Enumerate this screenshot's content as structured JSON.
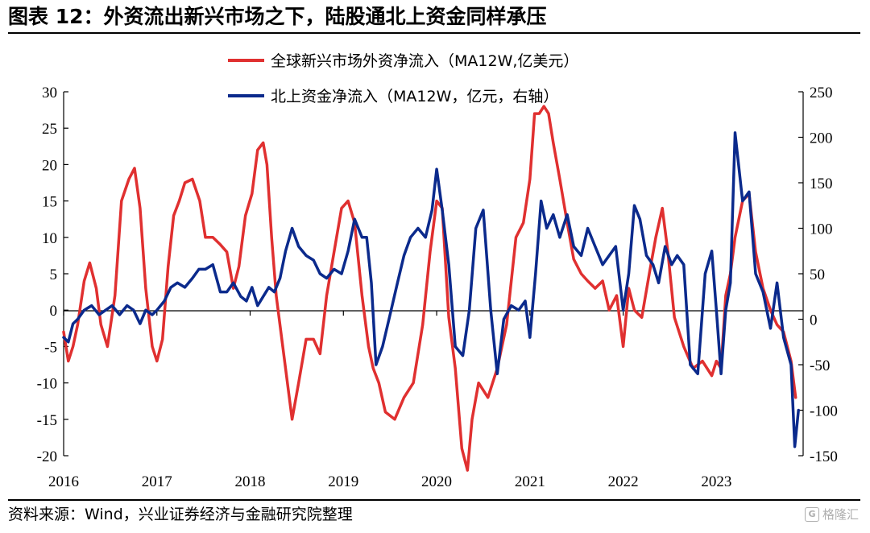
{
  "title": "图表 12：外资流出新兴市场之下，陆股通北上资金同样承压",
  "source": "资料来源：Wind，兴业证券经济与金融研究院整理",
  "watermark": "格隆汇",
  "watermark_icon": "g-logo-icon",
  "colors": {
    "series_red": "#e03030",
    "series_blue": "#0b2a8c",
    "axis": "#000000"
  },
  "chart_data": {
    "type": "line",
    "x_ticks": [
      "2016",
      "2017",
      "2018",
      "2019",
      "2020",
      "2021",
      "2022",
      "2023"
    ],
    "left_axis": {
      "range": [
        -20,
        30
      ],
      "ticks": [
        30,
        25,
        20,
        15,
        10,
        5,
        0,
        -5,
        -10,
        -15,
        -20
      ]
    },
    "right_axis": {
      "range": [
        -150,
        250
      ],
      "ticks": [
        250,
        200,
        150,
        100,
        50,
        0,
        -50,
        -100,
        -150
      ]
    },
    "legend_placement": "top-center",
    "grid": false,
    "zero_line": true,
    "series": [
      {
        "name": "全球新兴市场外资净流入（MA12W,亿美元）",
        "axis": "left",
        "x": [
          2016.0,
          2016.05,
          2016.1,
          2016.15,
          2016.22,
          2016.28,
          2016.35,
          2016.4,
          2016.47,
          2016.55,
          2016.62,
          2016.7,
          2016.76,
          2016.82,
          2016.88,
          2016.95,
          2017.0,
          2017.06,
          2017.12,
          2017.18,
          2017.24,
          2017.3,
          2017.38,
          2017.46,
          2017.52,
          2017.6,
          2017.68,
          2017.75,
          2017.82,
          2017.88,
          2017.95,
          2018.02,
          2018.08,
          2018.14,
          2018.18,
          2018.23,
          2018.28,
          2018.35,
          2018.45,
          2018.52,
          2018.6,
          2018.68,
          2018.75,
          2018.82,
          2018.9,
          2018.98,
          2019.05,
          2019.12,
          2019.2,
          2019.27,
          2019.32,
          2019.38,
          2019.45,
          2019.55,
          2019.65,
          2019.75,
          2019.85,
          2019.93,
          2020.0,
          2020.06,
          2020.13,
          2020.2,
          2020.27,
          2020.33,
          2020.38,
          2020.45,
          2020.55,
          2020.65,
          2020.75,
          2020.85,
          2020.93,
          2021.0,
          2021.05,
          2021.1,
          2021.15,
          2021.2,
          2021.25,
          2021.32,
          2021.4,
          2021.47,
          2021.55,
          2021.62,
          2021.7,
          2021.78,
          2021.85,
          2021.93,
          2022.0,
          2022.06,
          2022.12,
          2022.2,
          2022.28,
          2022.35,
          2022.42,
          2022.48,
          2022.55,
          2022.65,
          2022.75,
          2022.85,
          2022.95,
          2023.0,
          2023.05,
          2023.1,
          2023.15,
          2023.2,
          2023.28,
          2023.35,
          2023.42,
          2023.5,
          2023.58,
          2023.65,
          2023.72,
          2023.8,
          2023.85
        ],
        "y": [
          -3,
          -7,
          -5,
          -2,
          4,
          6.5,
          3,
          -2,
          -5,
          2,
          15,
          18,
          19.5,
          14,
          3,
          -5,
          -7,
          -4,
          6,
          13,
          15,
          17.5,
          18,
          15,
          10,
          10,
          9,
          8,
          3,
          6,
          13,
          16,
          22,
          23,
          20,
          10,
          2,
          -5,
          -15,
          -10,
          -4,
          -4,
          -6,
          2,
          8,
          14,
          15,
          12,
          2,
          -5,
          -8,
          -10,
          -14,
          -15,
          -12,
          -10,
          -2,
          8,
          15,
          14,
          -1,
          -8,
          -19,
          -22,
          -15,
          -10,
          -12,
          -8,
          -2,
          10,
          12,
          18,
          27,
          27,
          28,
          27,
          23,
          18,
          12,
          7,
          5,
          4,
          3,
          4,
          0,
          2,
          -5,
          3,
          0,
          -1,
          5,
          10,
          14,
          8,
          -1,
          -5,
          -8,
          -7,
          -9,
          -7,
          -8,
          2,
          5,
          10,
          15,
          16,
          8,
          3,
          0,
          -2,
          -3,
          -7,
          -12
        ]
      },
      {
        "name": "北上资金净流入（MA12W，亿元，右轴）",
        "axis": "right",
        "x": [
          2016.0,
          2016.05,
          2016.1,
          2016.15,
          2016.22,
          2016.3,
          2016.38,
          2016.45,
          2016.52,
          2016.6,
          2016.68,
          2016.75,
          2016.82,
          2016.88,
          2016.95,
          2017.0,
          2017.08,
          2017.15,
          2017.22,
          2017.3,
          2017.38,
          2017.45,
          2017.52,
          2017.6,
          2017.68,
          2017.75,
          2017.82,
          2017.9,
          2017.96,
          2018.02,
          2018.08,
          2018.14,
          2018.2,
          2018.26,
          2018.32,
          2018.38,
          2018.45,
          2018.52,
          2018.6,
          2018.68,
          2018.75,
          2018.82,
          2018.9,
          2018.98,
          2019.05,
          2019.12,
          2019.2,
          2019.25,
          2019.3,
          2019.35,
          2019.42,
          2019.5,
          2019.58,
          2019.65,
          2019.72,
          2019.8,
          2019.88,
          2019.95,
          2020.0,
          2020.06,
          2020.13,
          2020.2,
          2020.28,
          2020.35,
          2020.42,
          2020.5,
          2020.58,
          2020.65,
          2020.72,
          2020.8,
          2020.88,
          2020.95,
          2021.0,
          2021.06,
          2021.12,
          2021.18,
          2021.25,
          2021.32,
          2021.4,
          2021.47,
          2021.55,
          2021.62,
          2021.7,
          2021.78,
          2021.85,
          2021.92,
          2022.0,
          2022.06,
          2022.12,
          2022.18,
          2022.25,
          2022.32,
          2022.38,
          2022.45,
          2022.52,
          2022.58,
          2022.65,
          2022.72,
          2022.8,
          2022.88,
          2022.95,
          2023.0,
          2023.05,
          2023.1,
          2023.15,
          2023.2,
          2023.28,
          2023.35,
          2023.42,
          2023.5,
          2023.58,
          2023.65,
          2023.72,
          2023.8,
          2023.84,
          2023.88
        ],
        "y": [
          -20,
          -25,
          -5,
          0,
          10,
          15,
          5,
          10,
          15,
          5,
          15,
          10,
          -5,
          10,
          5,
          10,
          20,
          35,
          40,
          35,
          45,
          55,
          55,
          60,
          30,
          30,
          40,
          25,
          20,
          35,
          15,
          25,
          35,
          30,
          45,
          75,
          100,
          80,
          70,
          65,
          50,
          45,
          55,
          50,
          75,
          110,
          90,
          90,
          40,
          -50,
          -30,
          5,
          40,
          70,
          90,
          100,
          90,
          120,
          165,
          120,
          60,
          -30,
          -40,
          10,
          100,
          120,
          10,
          -60,
          0,
          15,
          10,
          20,
          -20,
          50,
          130,
          100,
          115,
          90,
          115,
          80,
          70,
          100,
          80,
          60,
          70,
          80,
          10,
          50,
          125,
          110,
          70,
          60,
          40,
          80,
          60,
          70,
          60,
          -50,
          -60,
          50,
          75,
          10,
          -60,
          10,
          40,
          205,
          130,
          140,
          50,
          30,
          -10,
          40,
          -20,
          -50,
          -140,
          -100
        ]
      }
    ]
  }
}
